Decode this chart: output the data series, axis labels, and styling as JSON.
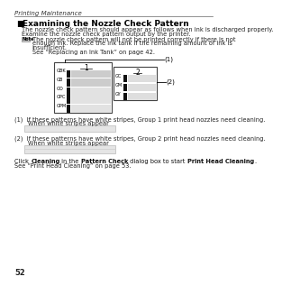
{
  "title_header": "Printing Maintenance",
  "section_title": "Examining the Nozzle Check Pattern",
  "intro_text1": "The nozzle check pattern should appear as follows when ink is discharged properly.",
  "intro_text2": "Examine the nozzle check pattern output by the printer.",
  "note_text1": "The nozzle check pattern will not be printed correctly if there is not",
  "note_text2": "enough ink. Replace the ink tank if the remaining amount of ink is",
  "note_text3": "insufficient.",
  "note_text4": "See “Replacing an Ink Tank” on page 42.",
  "group1_label": "1",
  "group2_label": "2",
  "group1_inks": [
    "GBK",
    "GB",
    "GO",
    "GPC",
    "GPM"
  ],
  "group2_inks": [
    "GC",
    "GM",
    "GY"
  ],
  "callout1": "(1)",
  "callout2": "(2)",
  "cap1a": "(1)  If these patterns have white stripes, Group 1 print head nozzles need cleaning.",
  "cap1b": "       When white stripes appear",
  "cap2a": "(2)  If these patterns have white stripes, Group 2 print head nozzles need cleaning.",
  "cap2b": "       When white stripes appear",
  "foot_parts": [
    [
      "Click ",
      false
    ],
    [
      "Cleaning",
      true
    ],
    [
      " in the ",
      false
    ],
    [
      "Pattern Check",
      true
    ],
    [
      " dialog box to start ",
      false
    ],
    [
      "Print Head Cleaning",
      true
    ],
    [
      ".",
      false
    ]
  ],
  "footer2": "See “Print Head Cleaning” on page 53.",
  "page_num": "52",
  "bg_color": "#ffffff"
}
